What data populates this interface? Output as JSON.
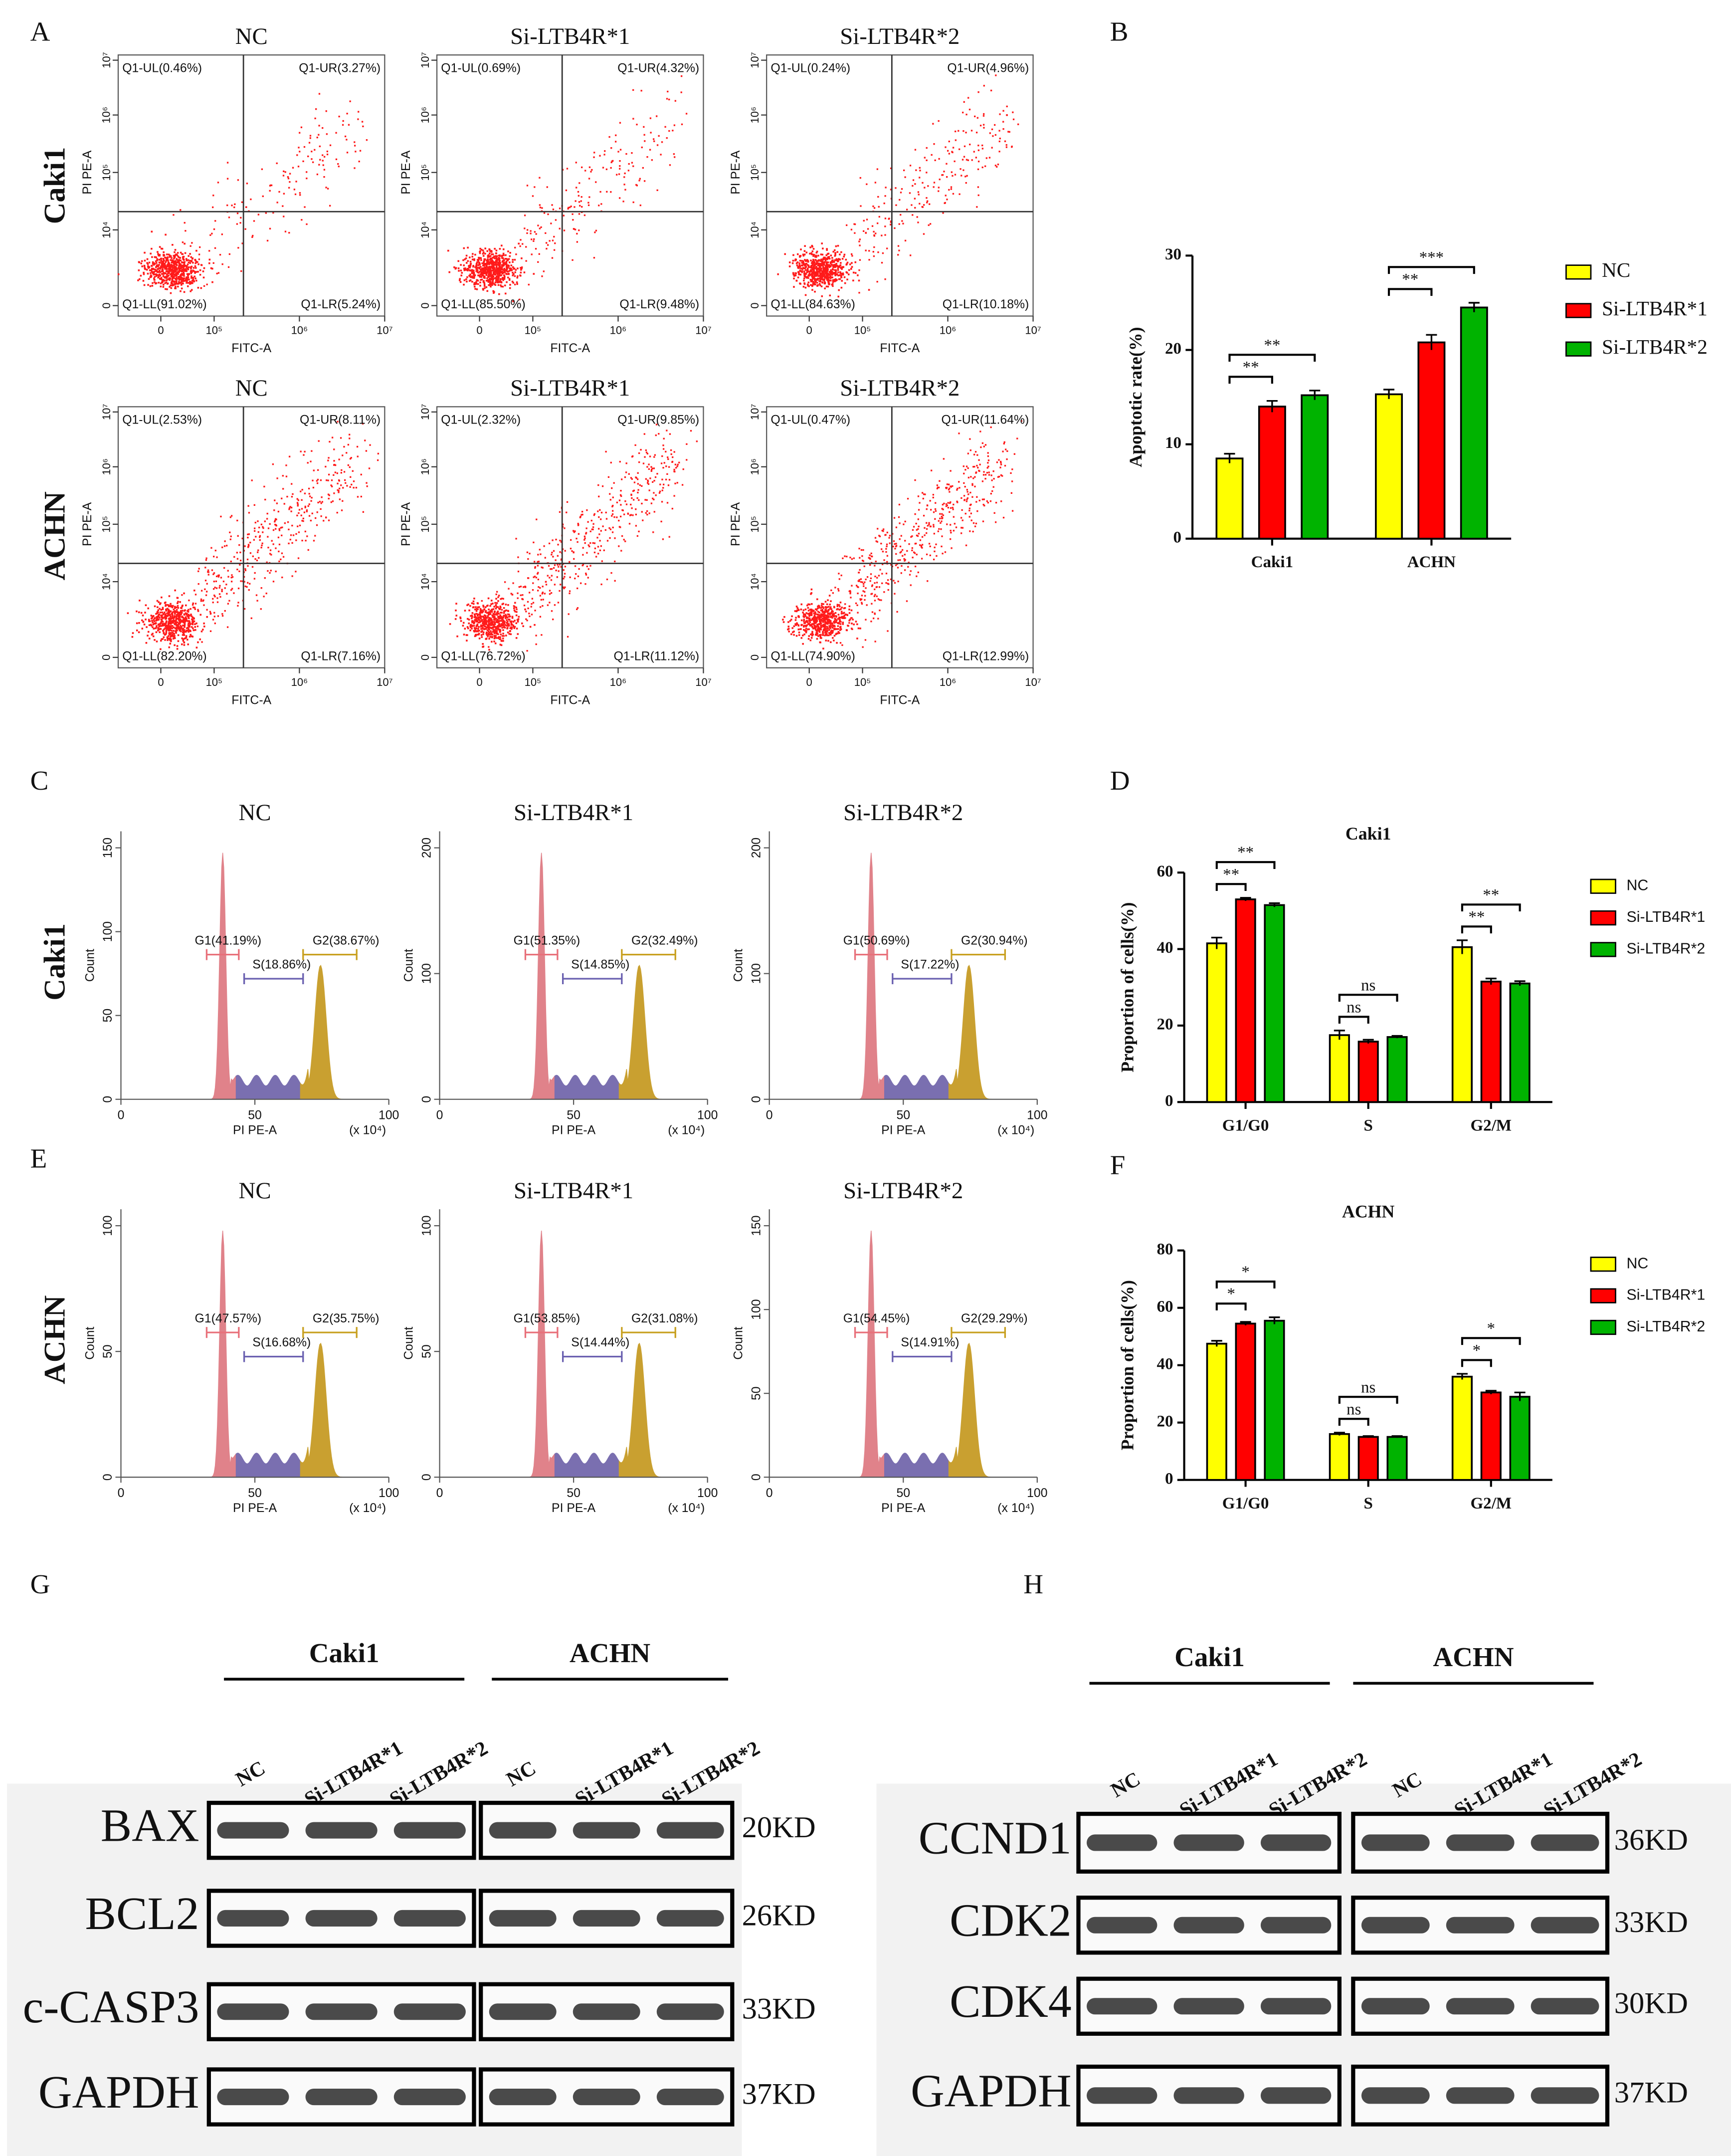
{
  "figure": {
    "panel_letters": [
      "A",
      "B",
      "C",
      "D",
      "E",
      "F",
      "G",
      "H"
    ],
    "flow_plots": {
      "row_labels": [
        "Caki1",
        "ACHN"
      ],
      "x_label": "FITC-A",
      "y_label": "PI PE-A",
      "x_tick_labels": [
        "0",
        "10⁵",
        "10⁶",
        "10⁷"
      ],
      "y_tick_labels": [
        "0",
        "10⁴",
        "10⁵",
        "10⁶",
        "10⁷"
      ],
      "plots": [
        {
          "title": "NC",
          "ul": "Q1-UL(0.46%)",
          "ur": "Q1-UR(3.27%)",
          "ll": "Q1-LL(91.02%)",
          "lr": "Q1-LR(5.24%)"
        },
        {
          "title": "Si-LTB4R*1",
          "ul": "Q1-UL(0.69%)",
          "ur": "Q1-UR(4.32%)",
          "ll": "Q1-LL(85.50%)",
          "lr": "Q1-LR(9.48%)"
        },
        {
          "title": "Si-LTB4R*2",
          "ul": "Q1-UL(0.24%)",
          "ur": "Q1-UR(4.96%)",
          "ll": "Q1-LL(84.63%)",
          "lr": "Q1-LR(10.18%)"
        },
        {
          "title": "NC",
          "ul": "Q1-UL(2.53%)",
          "ur": "Q1-UR(8.11%)",
          "ll": "Q1-LL(82.20%)",
          "lr": "Q1-LR(7.16%)"
        },
        {
          "title": "Si-LTB4R*1",
          "ul": "Q1-UL(2.32%)",
          "ur": "Q1-UR(9.85%)",
          "ll": "Q1-LL(76.72%)",
          "lr": "Q1-LR(11.12%)"
        },
        {
          "title": "Si-LTB4R*2",
          "ul": "Q1-UL(0.47%)",
          "ur": "Q1-UR(11.64%)",
          "ll": "Q1-LL(74.90%)",
          "lr": "Q1-LR(12.99%)"
        }
      ]
    },
    "cycle_histograms": {
      "row_labels": [
        "Caki1",
        "ACHN"
      ],
      "x_label": "PI PE-A",
      "x_unit": "(x 10⁴)",
      "x_tick_labels": [
        "0",
        "50",
        "100"
      ],
      "plots": [
        {
          "title": "NC",
          "y_label": "Count",
          "y_tick_labels": [
            "0",
            "50",
            "100",
            "150"
          ],
          "g1": "G1(41.19%)",
          "s": "S(18.86%)",
          "g2": "G2(38.67%)"
        },
        {
          "title": "Si-LTB4R*1",
          "y_label": "Count",
          "y_tick_labels": [
            "0",
            "100",
            "200"
          ],
          "g1": "G1(51.35%)",
          "s": "S(14.85%)",
          "g2": "G2(32.49%)"
        },
        {
          "title": "Si-LTB4R*2",
          "y_label": "Count",
          "y_tick_labels": [
            "0",
            "100",
            "200"
          ],
          "g1": "G1(50.69%)",
          "s": "S(17.22%)",
          "g2": "G2(30.94%)"
        },
        {
          "title": "NC",
          "y_label": "Count",
          "y_tick_labels": [
            "0",
            "50",
            "100"
          ],
          "g1": "G1(47.57%)",
          "s": "S(16.68%)",
          "g2": "G2(35.75%)"
        },
        {
          "title": "Si-LTB4R*1",
          "y_label": "Count",
          "y_tick_labels": [
            "0",
            "50",
            "100"
          ],
          "g1": "G1(53.85%)",
          "s": "S(14.44%)",
          "g2": "G2(31.08%)"
        },
        {
          "title": "Si-LTB4R*2",
          "y_label": "Count",
          "y_tick_labels": [
            "0",
            "50",
            "100",
            "150"
          ],
          "g1": "G1(54.45%)",
          "s": "S(14.91%)",
          "g2": "G2(29.29%)"
        }
      ]
    },
    "western_blots": [
      {
        "groups": [
          "Caki1",
          "ACHN"
        ],
        "lanes": [
          "NC",
          "Si-LTB4R*1",
          "Si-LTB4R*2"
        ],
        "proteins": [
          "BAX",
          "BCL2",
          "c-CASP3",
          "GAPDH"
        ],
        "sizes": [
          "20KD",
          "26KD",
          "33KD",
          "37KD"
        ]
      },
      {
        "groups": [
          "Caki1",
          "ACHN"
        ],
        "lanes": [
          "NC",
          "Si-LTB4R*1",
          "Si-LTB4R*2"
        ],
        "proteins": [
          "CCND1",
          "CDK2",
          "CDK4",
          "GAPDH"
        ],
        "sizes": [
          "36KD",
          "33KD",
          "30KD",
          "37KD"
        ]
      }
    ]
  },
  "chart_data": [
    {
      "type": "bar",
      "y_label": "Apoptotic rate(%)",
      "categories": [
        "Caki1",
        "ACHN"
      ],
      "series": [
        {
          "name": "NC",
          "color": "#ffff00",
          "values": [
            8.5,
            15.3
          ],
          "errors": [
            0.5,
            0.5
          ]
        },
        {
          "name": "Si-LTB4R*1",
          "color": "#ff0000",
          "values": [
            14,
            20.8
          ],
          "errors": [
            0.6,
            0.8
          ]
        },
        {
          "name": "Si-LTB4R*2",
          "color": "#00b300",
          "values": [
            15.2,
            24.5
          ],
          "errors": [
            0.5,
            0.5
          ]
        }
      ],
      "ylim": [
        0,
        30
      ],
      "yticks": [
        0,
        10,
        20,
        30
      ],
      "significance": [
        [
          "**",
          "**"
        ],
        [
          "**",
          "***"
        ]
      ]
    },
    {
      "type": "bar",
      "title": "Caki1",
      "y_label": "Proportion of cells(%)",
      "categories": [
        "G1/G0",
        "S",
        "G2/M"
      ],
      "series": [
        {
          "name": "NC",
          "color": "#ffff00",
          "values": [
            41.5,
            17.5,
            40.5
          ],
          "errors": [
            1.5,
            1.2,
            1.8
          ]
        },
        {
          "name": "Si-LTB4R*1",
          "color": "#ff0000",
          "values": [
            53,
            15.8,
            31.5
          ],
          "errors": [
            0.4,
            0.5,
            0.8
          ]
        },
        {
          "name": "Si-LTB4R*2",
          "color": "#00b300",
          "values": [
            51.5,
            17,
            31
          ],
          "errors": [
            0.5,
            0.3,
            0.6
          ]
        }
      ],
      "ylim": [
        0,
        60
      ],
      "yticks": [
        0,
        20,
        40,
        60
      ],
      "significance": [
        [
          "**",
          "**"
        ],
        [
          "ns",
          "ns"
        ],
        [
          "**",
          "**"
        ]
      ]
    },
    {
      "type": "bar",
      "title": "ACHN",
      "y_label": "Proportion of cells(%)",
      "categories": [
        "G1/G0",
        "S",
        "G2/M"
      ],
      "series": [
        {
          "name": "NC",
          "color": "#ffff00",
          "values": [
            47.5,
            16,
            36
          ],
          "errors": [
            1,
            0.5,
            1
          ]
        },
        {
          "name": "Si-LTB4R*1",
          "color": "#ff0000",
          "values": [
            54.5,
            15,
            30.5
          ],
          "errors": [
            0.6,
            0.3,
            0.6
          ]
        },
        {
          "name": "Si-LTB4R*2",
          "color": "#00b300",
          "values": [
            55.5,
            15,
            29
          ],
          "errors": [
            1.2,
            0.3,
            1.5
          ]
        }
      ],
      "ylim": [
        0,
        80
      ],
      "yticks": [
        0,
        20,
        40,
        60,
        80
      ],
      "significance": [
        [
          "*",
          "*"
        ],
        [
          "ns",
          "ns"
        ],
        [
          "*",
          "*"
        ]
      ]
    }
  ]
}
